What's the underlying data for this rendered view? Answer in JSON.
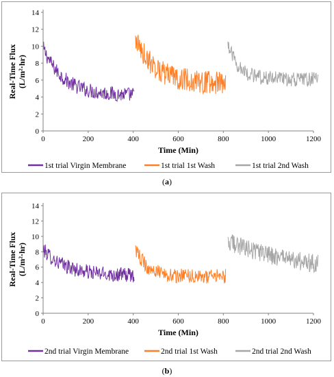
{
  "chart_data": [
    {
      "panel_label": "a",
      "type": "line",
      "xlabel": "Time (Min)",
      "ylabel_line1": "Real-Time Flux",
      "ylabel_line2": "(L/m²·hr)",
      "xlim": [
        0,
        1200
      ],
      "ylim": [
        0,
        14
      ],
      "x_ticks": [
        "0",
        "200",
        "400",
        "600",
        "800",
        "1000",
        "1200"
      ],
      "y_ticks": [
        "0",
        "2",
        "4",
        "6",
        "8",
        "10",
        "12",
        "14"
      ],
      "legend_position": "bottom",
      "series": [
        {
          "name": "1st trial Virgin Membrane",
          "color": "#7030A0",
          "x_start": 0,
          "x_end": 405,
          "start": 9.8,
          "end": 4.2,
          "tau": 90,
          "noise": 0.55
        },
        {
          "name": "1st trial 1st Wash",
          "color": "#FF7F27",
          "x_start": 410,
          "x_end": 810,
          "start": 10.8,
          "end": 5.6,
          "tau": 90,
          "noise": 0.85
        },
        {
          "name": "1st trial 2nd Wash",
          "color": "#A6A6A6",
          "x_start": 820,
          "x_end": 1220,
          "start": 10.2,
          "end": 6.1,
          "tau": 50,
          "noise": 0.55
        }
      ]
    },
    {
      "panel_label": "b",
      "type": "line",
      "xlabel": "Time (Min)",
      "ylabel_line1": "Real-Time Flux",
      "ylabel_line2": "(L/m²·hr)",
      "xlim": [
        0,
        1200
      ],
      "ylim": [
        0,
        14
      ],
      "x_ticks": [
        "0",
        "200",
        "400",
        "600",
        "800",
        "1000",
        "1200"
      ],
      "y_ticks": [
        "0",
        "2",
        "4",
        "6",
        "8",
        "10",
        "12",
        "14"
      ],
      "legend_position": "bottom",
      "series": [
        {
          "name": "2nd trial Virgin Membrane",
          "color": "#7030A0",
          "x_start": 0,
          "x_end": 405,
          "start": 8.3,
          "end": 4.9,
          "tau": 100,
          "noise": 0.6
        },
        {
          "name": "2nd trial 1st Wash",
          "color": "#FF7F27",
          "x_start": 410,
          "x_end": 810,
          "start": 8.5,
          "end": 4.8,
          "tau": 50,
          "noise": 0.6
        },
        {
          "name": "2nd trial 2nd Wash",
          "color": "#A6A6A6",
          "x_start": 820,
          "x_end": 1220,
          "start": 9.4,
          "end": 5.4,
          "tau": 300,
          "noise": 0.75
        }
      ]
    }
  ]
}
